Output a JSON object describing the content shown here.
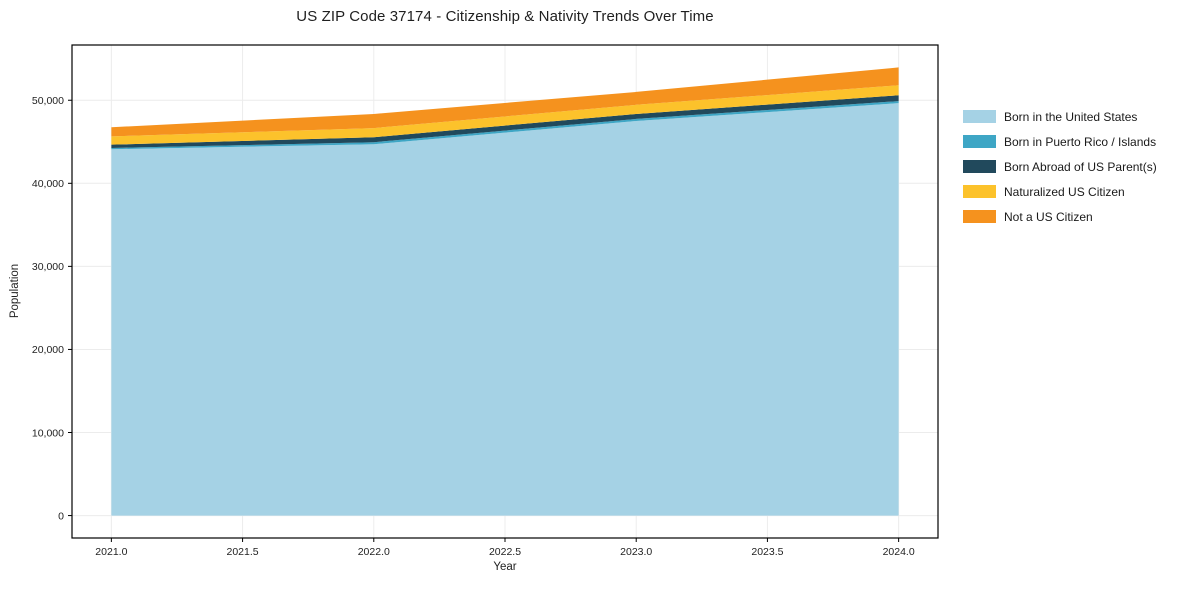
{
  "figure": {
    "background": "#ffffff",
    "text_color": "#1f1f1f"
  },
  "chart_data": {
    "type": "area",
    "stacked": true,
    "title": "US ZIP Code 37174 - Citizenship & Nativity Trends Over Time",
    "xlabel": "Year",
    "ylabel": "Population",
    "x": [
      2021,
      2022,
      2023,
      2024
    ],
    "series": [
      {
        "name": "Born in the United States",
        "color": "#A5D2E5",
        "values": [
          44100,
          44700,
          47500,
          49650
        ]
      },
      {
        "name": "Born in Puerto Rico / Islands",
        "color": "#3EA6C5",
        "values": [
          150,
          250,
          250,
          250
        ]
      },
      {
        "name": "Born Abroad of US Parent(s)",
        "color": "#21495C",
        "values": [
          400,
          600,
          600,
          700
        ]
      },
      {
        "name": "Naturalized US Citizen",
        "color": "#FCC22B",
        "values": [
          1000,
          1100,
          1100,
          1200
        ]
      },
      {
        "name": "Not a US Citizen",
        "color": "#F5921E",
        "values": [
          1100,
          1700,
          1550,
          2150
        ]
      }
    ],
    "totals": [
      46750,
      48350,
      51000,
      53950
    ],
    "xlim": [
      2020.85,
      2024.15
    ],
    "ylim": [
      -2700,
      56650
    ],
    "x_ticks": [
      {
        "value": 2021.0,
        "label": "2021.0"
      },
      {
        "value": 2021.5,
        "label": "2021.5"
      },
      {
        "value": 2022.0,
        "label": "2022.0"
      },
      {
        "value": 2022.5,
        "label": "2022.5"
      },
      {
        "value": 2023.0,
        "label": "2023.0"
      },
      {
        "value": 2023.5,
        "label": "2023.5"
      },
      {
        "value": 2024.0,
        "label": "2024.0"
      }
    ],
    "y_ticks": [
      {
        "value": 0,
        "label": "0"
      },
      {
        "value": 10000,
        "label": "10,000"
      },
      {
        "value": 20000,
        "label": "20,000"
      },
      {
        "value": 30000,
        "label": "30,000"
      },
      {
        "value": 40000,
        "label": "40,000"
      },
      {
        "value": 50000,
        "label": "50,000"
      }
    ],
    "grid": true,
    "grid_color": "#ececec",
    "spine_color": "#000000",
    "legend_position": "outside-right"
  }
}
